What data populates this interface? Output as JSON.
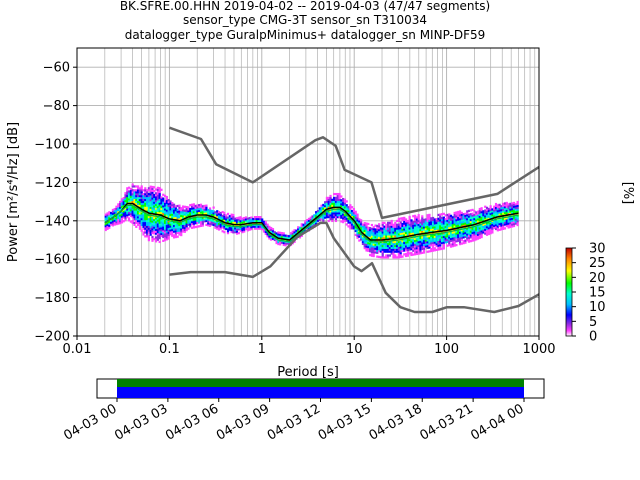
{
  "title_lines": [
    "BK.SFRE.00.HHN   2019-04-02 -- 2019-04-03  (47/47 segments)",
    "sensor_type CMG-3T sensor_sn T310034",
    "datalogger_type GuralpMinimus+ datalogger_sn MINP-DF59"
  ],
  "chart_data": [
    {
      "type": "line",
      "name": "ppsd",
      "xlabel": "Period [s]",
      "ylabel": "Power [m²/s⁴/Hz] [dB]",
      "xscale": "log",
      "xlim": [
        0.01,
        1000
      ],
      "ylim": [
        -200,
        -50
      ],
      "xticks": [
        0.01,
        0.1,
        1,
        10,
        100,
        1000
      ],
      "xtick_labels": [
        "0.01",
        "0.1",
        "1",
        "10",
        "100",
        "1000"
      ],
      "yticks": [
        -60,
        -80,
        -100,
        -120,
        -140,
        -160,
        -180,
        -200
      ],
      "ytick_labels": [
        "−60",
        "−80",
        "−100",
        "−120",
        "−140",
        "−160",
        "−180",
        "−200"
      ],
      "grid": true,
      "colorbar": {
        "label": "[%]",
        "range": [
          0,
          30
        ],
        "ticks": [
          "0",
          "5",
          "10",
          "15",
          "20",
          "25",
          "30"
        ]
      },
      "series": [
        {
          "role": "mode",
          "color": "#000000",
          "x": [
            0.02,
            0.025,
            0.03,
            0.035,
            0.04,
            0.05,
            0.06,
            0.08,
            0.1,
            0.13,
            0.16,
            0.2,
            0.25,
            0.3,
            0.4,
            0.5,
            0.6,
            0.8,
            1.0,
            1.2,
            1.5,
            2.0,
            3.0,
            4.0,
            5.0,
            6.0,
            7.0,
            8.0,
            10.0,
            12.0,
            15.0,
            20.0,
            30.0,
            50.0,
            100.0,
            200.0,
            350.0,
            600.0
          ],
          "y": [
            -141,
            -138,
            -135,
            -131,
            -131,
            -134,
            -136,
            -137,
            -139,
            -140,
            -138,
            -137,
            -137,
            -138,
            -141,
            -142,
            -142,
            -141,
            -141,
            -146,
            -149,
            -150,
            -143,
            -138,
            -134,
            -133,
            -133,
            -135,
            -140,
            -146,
            -150,
            -150,
            -149,
            -147,
            -145,
            -142,
            -138,
            -136
          ]
        },
        {
          "role": "mean",
          "color": "#00b050",
          "x": [
            0.02,
            0.025,
            0.03,
            0.035,
            0.04,
            0.05,
            0.06,
            0.08,
            0.1,
            0.13,
            0.16,
            0.2,
            0.25,
            0.3,
            0.4,
            0.5,
            0.6,
            0.8,
            1.0,
            1.2,
            1.5,
            2.0,
            3.0,
            4.0,
            5.0,
            6.0,
            7.0,
            8.0,
            10.0,
            12.0,
            15.0,
            20.0,
            30.0,
            50.0,
            100.0,
            200.0,
            350.0,
            600.0
          ],
          "y": [
            -141,
            -138,
            -135,
            -132,
            -132,
            -135,
            -137,
            -138,
            -140,
            -141,
            -139,
            -138,
            -138,
            -139,
            -142,
            -143,
            -143,
            -142,
            -142,
            -147,
            -150,
            -151,
            -144,
            -139,
            -135,
            -134,
            -134,
            -136,
            -141,
            -147,
            -151,
            -151,
            -150,
            -148,
            -146,
            -143,
            -139,
            -137
          ]
        },
        {
          "role": "NHNM",
          "color": "#666666",
          "x": [
            0.1,
            0.22,
            0.32,
            0.8,
            3.8,
            4.6,
            6.3,
            7.9,
            15.4,
            20,
            354.8,
            1000
          ],
          "y": [
            -91.5,
            -97.4,
            -110.5,
            -120,
            -98,
            -96.5,
            -101,
            -113.5,
            -120,
            -138.5,
            -126,
            -112
          ]
        },
        {
          "role": "NLNM",
          "color": "#666666",
          "x": [
            0.1,
            0.17,
            0.4,
            0.8,
            1.24,
            2.4,
            4.3,
            5.0,
            6.0,
            10.0,
            12.0,
            15.6,
            21.9,
            31.6,
            45,
            70,
            101,
            154,
            328,
            600,
            1000
          ],
          "y": [
            -168,
            -166.7,
            -166.7,
            -169.2,
            -163.7,
            -148.6,
            -141.1,
            -141.1,
            -149.0,
            -163.8,
            -166.2,
            -162.1,
            -177.5,
            -185.0,
            -187.5,
            -187.5,
            -185.0,
            -185.0,
            -187.5,
            -184.4,
            -178.3
          ]
        }
      ],
      "density": {
        "x": [
          0.02,
          0.025,
          0.03,
          0.035,
          0.04,
          0.05,
          0.06,
          0.08,
          0.1,
          0.13,
          0.16,
          0.2,
          0.25,
          0.3,
          0.4,
          0.5,
          0.6,
          0.8,
          1.0,
          1.2,
          1.5,
          2.0,
          3.0,
          4.0,
          5.0,
          6.0,
          7.0,
          8.0,
          10.0,
          12.0,
          15.0,
          20.0,
          30.0,
          50.0,
          100.0,
          200.0,
          350.0,
          600.0
        ],
        "center": [
          -141,
          -138,
          -135,
          -131,
          -131,
          -134,
          -136,
          -137,
          -139,
          -140,
          -138,
          -137,
          -137,
          -138,
          -141,
          -142,
          -142,
          -141,
          -141,
          -146,
          -149,
          -150,
          -143,
          -138,
          -134,
          -133,
          -133,
          -135,
          -140,
          -146,
          -150,
          -150,
          -149,
          -147,
          -145,
          -142,
          -138,
          -136
        ],
        "spread": [
          4,
          4,
          6,
          8,
          10,
          12,
          14,
          14,
          10,
          8,
          6,
          6,
          5,
          5,
          5,
          5,
          4,
          3,
          3,
          3,
          3,
          3,
          3,
          4,
          6,
          7,
          7,
          6,
          6,
          6,
          8,
          9,
          10,
          10,
          9,
          8,
          7,
          6
        ]
      }
    },
    {
      "type": "timeline",
      "name": "data_availability",
      "xtick_labels": [
        "04-03 00",
        "04-03 03",
        "04-03 06",
        "04-03 09",
        "04-03 12",
        "04-03 15",
        "04-03 18",
        "04-03 21",
        "04-04 00"
      ],
      "bars": [
        {
          "role": "used",
          "color": "#008000"
        },
        {
          "role": "available",
          "color": "#0000ff"
        }
      ]
    }
  ]
}
